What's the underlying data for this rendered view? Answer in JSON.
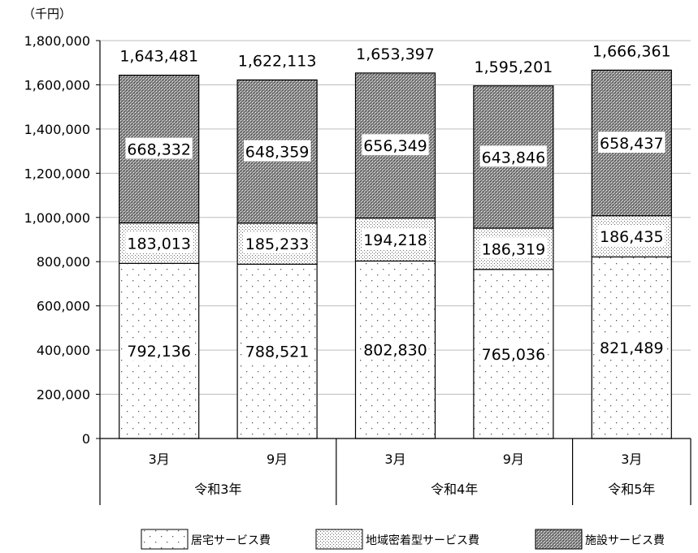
{
  "chart_data": {
    "type": "bar",
    "stacked": true,
    "unit_label": "（千円）",
    "categories": [
      "3月",
      "9月",
      "3月",
      "9月",
      "3月"
    ],
    "groups": [
      {
        "label": "令和3年",
        "span": 2
      },
      {
        "label": "令和4年",
        "span": 2
      },
      {
        "label": "令和5年",
        "span": 1
      }
    ],
    "series": [
      {
        "name": "居宅サービス費",
        "pattern": "dots-sparse",
        "values": [
          792136,
          788521,
          802830,
          765036,
          821489
        ]
      },
      {
        "name": "地域密着型サービス費",
        "pattern": "dots-dense",
        "values": [
          183013,
          185233,
          194218,
          186319,
          186435
        ]
      },
      {
        "name": "施設サービス費",
        "pattern": "crosshatch",
        "values": [
          668332,
          648359,
          656349,
          643846,
          658437
        ]
      }
    ],
    "totals": [
      1643481,
      1622113,
      1653397,
      1595201,
      1666361
    ],
    "ylim": [
      0,
      1800000
    ],
    "yticks": [
      "0",
      "200,000",
      "400,000",
      "600,000",
      "800,000",
      "1,000,000",
      "1,200,000",
      "1,400,000",
      "1,600,000",
      "1,800,000"
    ],
    "grid": true,
    "legend_position": "bottom"
  }
}
